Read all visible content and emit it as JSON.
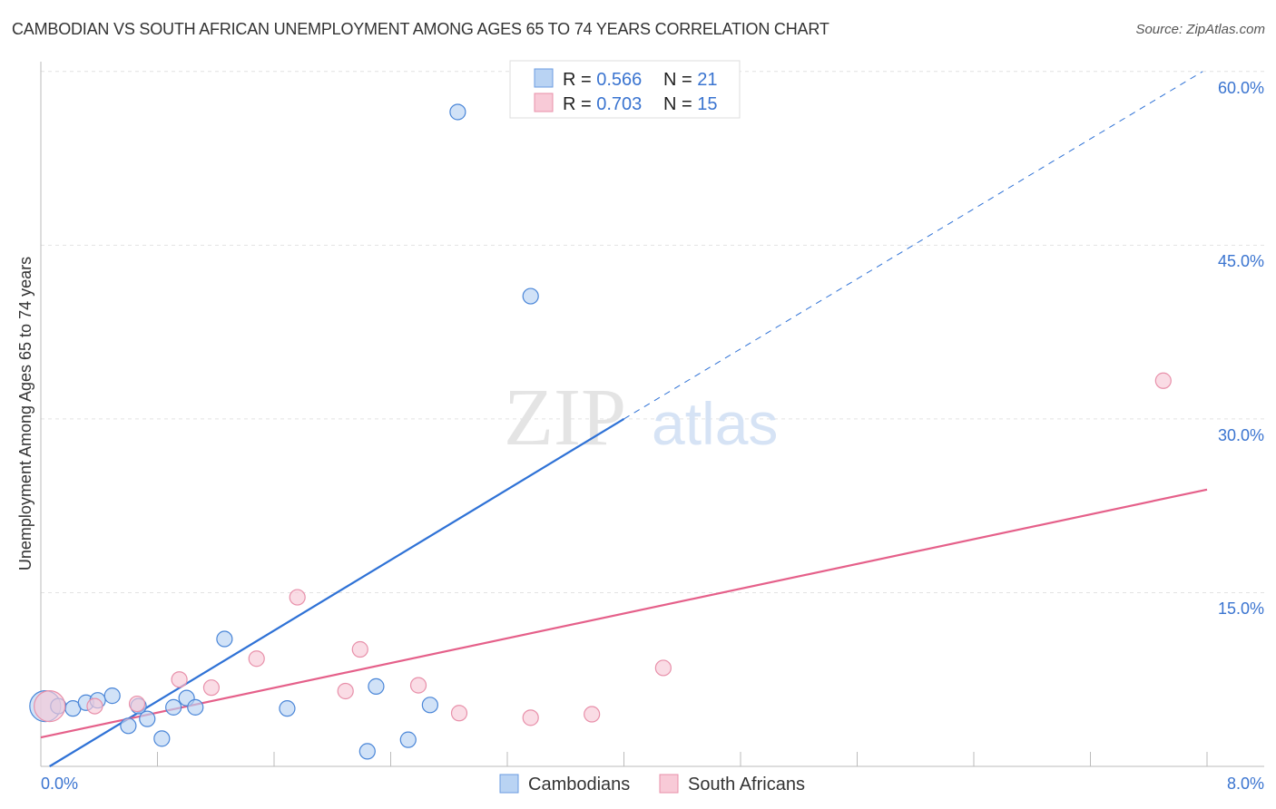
{
  "chart_data": {
    "type": "scatter",
    "title": "CAMBODIAN VS SOUTH AFRICAN UNEMPLOYMENT AMONG AGES 65 TO 74 YEARS CORRELATION CHART",
    "source": "Source: ZipAtlas.com",
    "xlabel": "",
    "ylabel": "Unemployment Among Ages 65 to 74 years",
    "xlim": [
      0,
      8
    ],
    "ylim": [
      0,
      63
    ],
    "x_tick_labels": [
      "0.0%",
      "8.0%"
    ],
    "y_ticks": [
      15,
      30,
      45,
      60
    ],
    "y_tick_labels": [
      "15.0%",
      "30.0%",
      "45.0%",
      "60.0%"
    ],
    "grid": true,
    "watermark": "ZIPatlas",
    "legend_top": [
      {
        "r_label": "R = ",
        "r": "0.566",
        "n_label": "N = ",
        "n": "21"
      },
      {
        "r_label": "R = ",
        "r": "0.703",
        "n_label": "N = ",
        "n": "15"
      }
    ],
    "legend_bottom": [
      "Cambodians",
      "South Africans"
    ],
    "series": [
      {
        "name": "Cambodians",
        "color": "#4a86d8",
        "fill": "#b9d3f3",
        "points": [
          [
            0.03,
            5.2,
            "big"
          ],
          [
            0.12,
            5.2
          ],
          [
            0.22,
            5.0
          ],
          [
            0.31,
            5.5
          ],
          [
            0.39,
            5.7
          ],
          [
            0.49,
            6.1
          ],
          [
            0.6,
            3.5
          ],
          [
            0.67,
            5.2
          ],
          [
            0.73,
            4.1
          ],
          [
            0.83,
            2.4
          ],
          [
            0.91,
            5.1
          ],
          [
            1.0,
            5.9
          ],
          [
            1.06,
            5.1
          ],
          [
            1.26,
            11.0
          ],
          [
            1.69,
            5.0
          ],
          [
            2.24,
            1.3
          ],
          [
            2.3,
            6.9
          ],
          [
            2.52,
            2.3
          ],
          [
            2.67,
            5.3
          ],
          [
            2.86,
            56.5
          ],
          [
            3.36,
            40.6
          ]
        ],
        "trend": {
          "x0": 0.06,
          "y0": 0,
          "x1": 4.0,
          "y1": 30,
          "dash_to_x": 7.97,
          "dash_to_y": 60,
          "line_color": "#2f72d6"
        }
      },
      {
        "name": "South Africans",
        "color": "#e890aa",
        "fill": "#f8cad7",
        "points": [
          [
            0.06,
            5.2,
            "big"
          ],
          [
            0.37,
            5.2
          ],
          [
            0.66,
            5.4
          ],
          [
            0.95,
            7.5
          ],
          [
            1.17,
            6.8
          ],
          [
            1.48,
            9.3
          ],
          [
            1.76,
            14.6
          ],
          [
            2.09,
            6.5
          ],
          [
            2.19,
            10.1
          ],
          [
            2.59,
            7.0
          ],
          [
            2.87,
            4.6
          ],
          [
            3.36,
            4.2
          ],
          [
            3.78,
            4.5
          ],
          [
            4.27,
            8.5
          ],
          [
            7.7,
            33.3
          ]
        ],
        "trend": {
          "x0": 0,
          "y0": 2.5,
          "x1": 8,
          "y1": 23.9,
          "line_color": "#e5608a"
        }
      }
    ]
  }
}
